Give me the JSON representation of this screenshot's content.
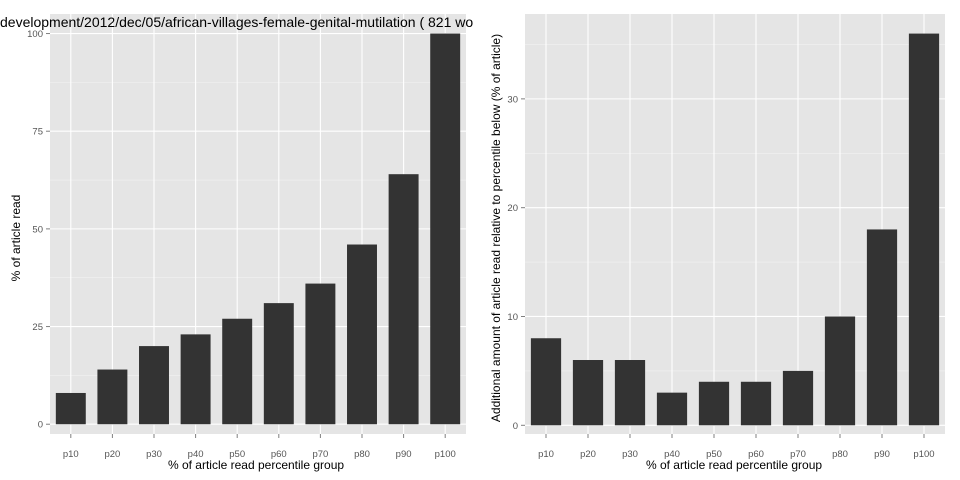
{
  "chart_data": [
    {
      "type": "bar",
      "title": "development/2012/dec/05/african-villages-female-genital-mutilation ( 821 wo",
      "xlabel": "% of article read percentile group",
      "ylabel": "% of article read",
      "categories": [
        "p10",
        "p20",
        "p30",
        "p40",
        "p50",
        "p60",
        "p70",
        "p80",
        "p90",
        "p100"
      ],
      "values": [
        8,
        14,
        20,
        23,
        27,
        31,
        36,
        46,
        64,
        100
      ],
      "ylim": [
        -2.5,
        105
      ],
      "yticks": [
        0,
        25,
        50,
        75,
        100
      ],
      "grid": true,
      "bar_color": "#333333",
      "panel_color": "#e5e5e5"
    },
    {
      "type": "bar",
      "title": "",
      "xlabel": "% of article read percentile group",
      "ylabel": "Additional amount of article read relative to percentile below (% of article)",
      "categories": [
        "p10",
        "p20",
        "p30",
        "p40",
        "p50",
        "p60",
        "p70",
        "p80",
        "p90",
        "p100"
      ],
      "values": [
        8,
        6,
        6,
        3,
        4,
        4,
        5,
        10,
        18,
        36
      ],
      "ylim": [
        -0.8,
        37.8
      ],
      "yticks": [
        0,
        10,
        20,
        30
      ],
      "grid": true,
      "bar_color": "#333333",
      "panel_color": "#e5e5e5"
    }
  ]
}
